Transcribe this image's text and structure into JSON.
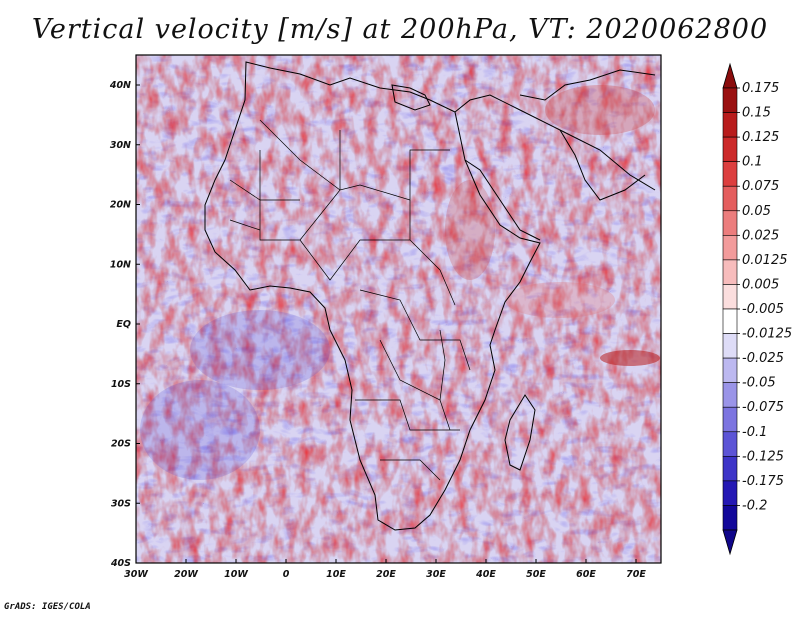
{
  "title": "Vertical velocity [m/s] at 200hPa, VT: 2020062800",
  "credit": "GrADS: IGES/COLA",
  "lat_labels": [
    "40N",
    "30N",
    "20N",
    "10N",
    "EQ",
    "10S",
    "20S",
    "30S",
    "40S"
  ],
  "lon_labels": [
    "30W",
    "20W",
    "10W",
    "0",
    "10E",
    "20E",
    "30E",
    "40E",
    "50E",
    "60E",
    "70E"
  ],
  "colorbar": {
    "levels": [
      "0.175",
      "0.15",
      "0.125",
      "0.1",
      "0.075",
      "0.05",
      "0.025",
      "0.0125",
      "0.005",
      "-0.005",
      "-0.0125",
      "-0.025",
      "-0.05",
      "-0.075",
      "-0.1",
      "-0.125",
      "-0.175",
      "-0.2"
    ],
    "colors": [
      "#9a1010",
      "#b81c1c",
      "#cc2a2a",
      "#dc3f3f",
      "#e45e5e",
      "#ec7d7d",
      "#f29b9b",
      "#f7bcbc",
      "#fbdede",
      "#ffffff",
      "#dedcf7",
      "#bcb8f0",
      "#9a94e8",
      "#7c74e0",
      "#5c54d6",
      "#3d34c8",
      "#2418b4",
      "#12089a"
    ],
    "top_color": "#8a0c0c",
    "bottom_color": "#10068a"
  }
}
